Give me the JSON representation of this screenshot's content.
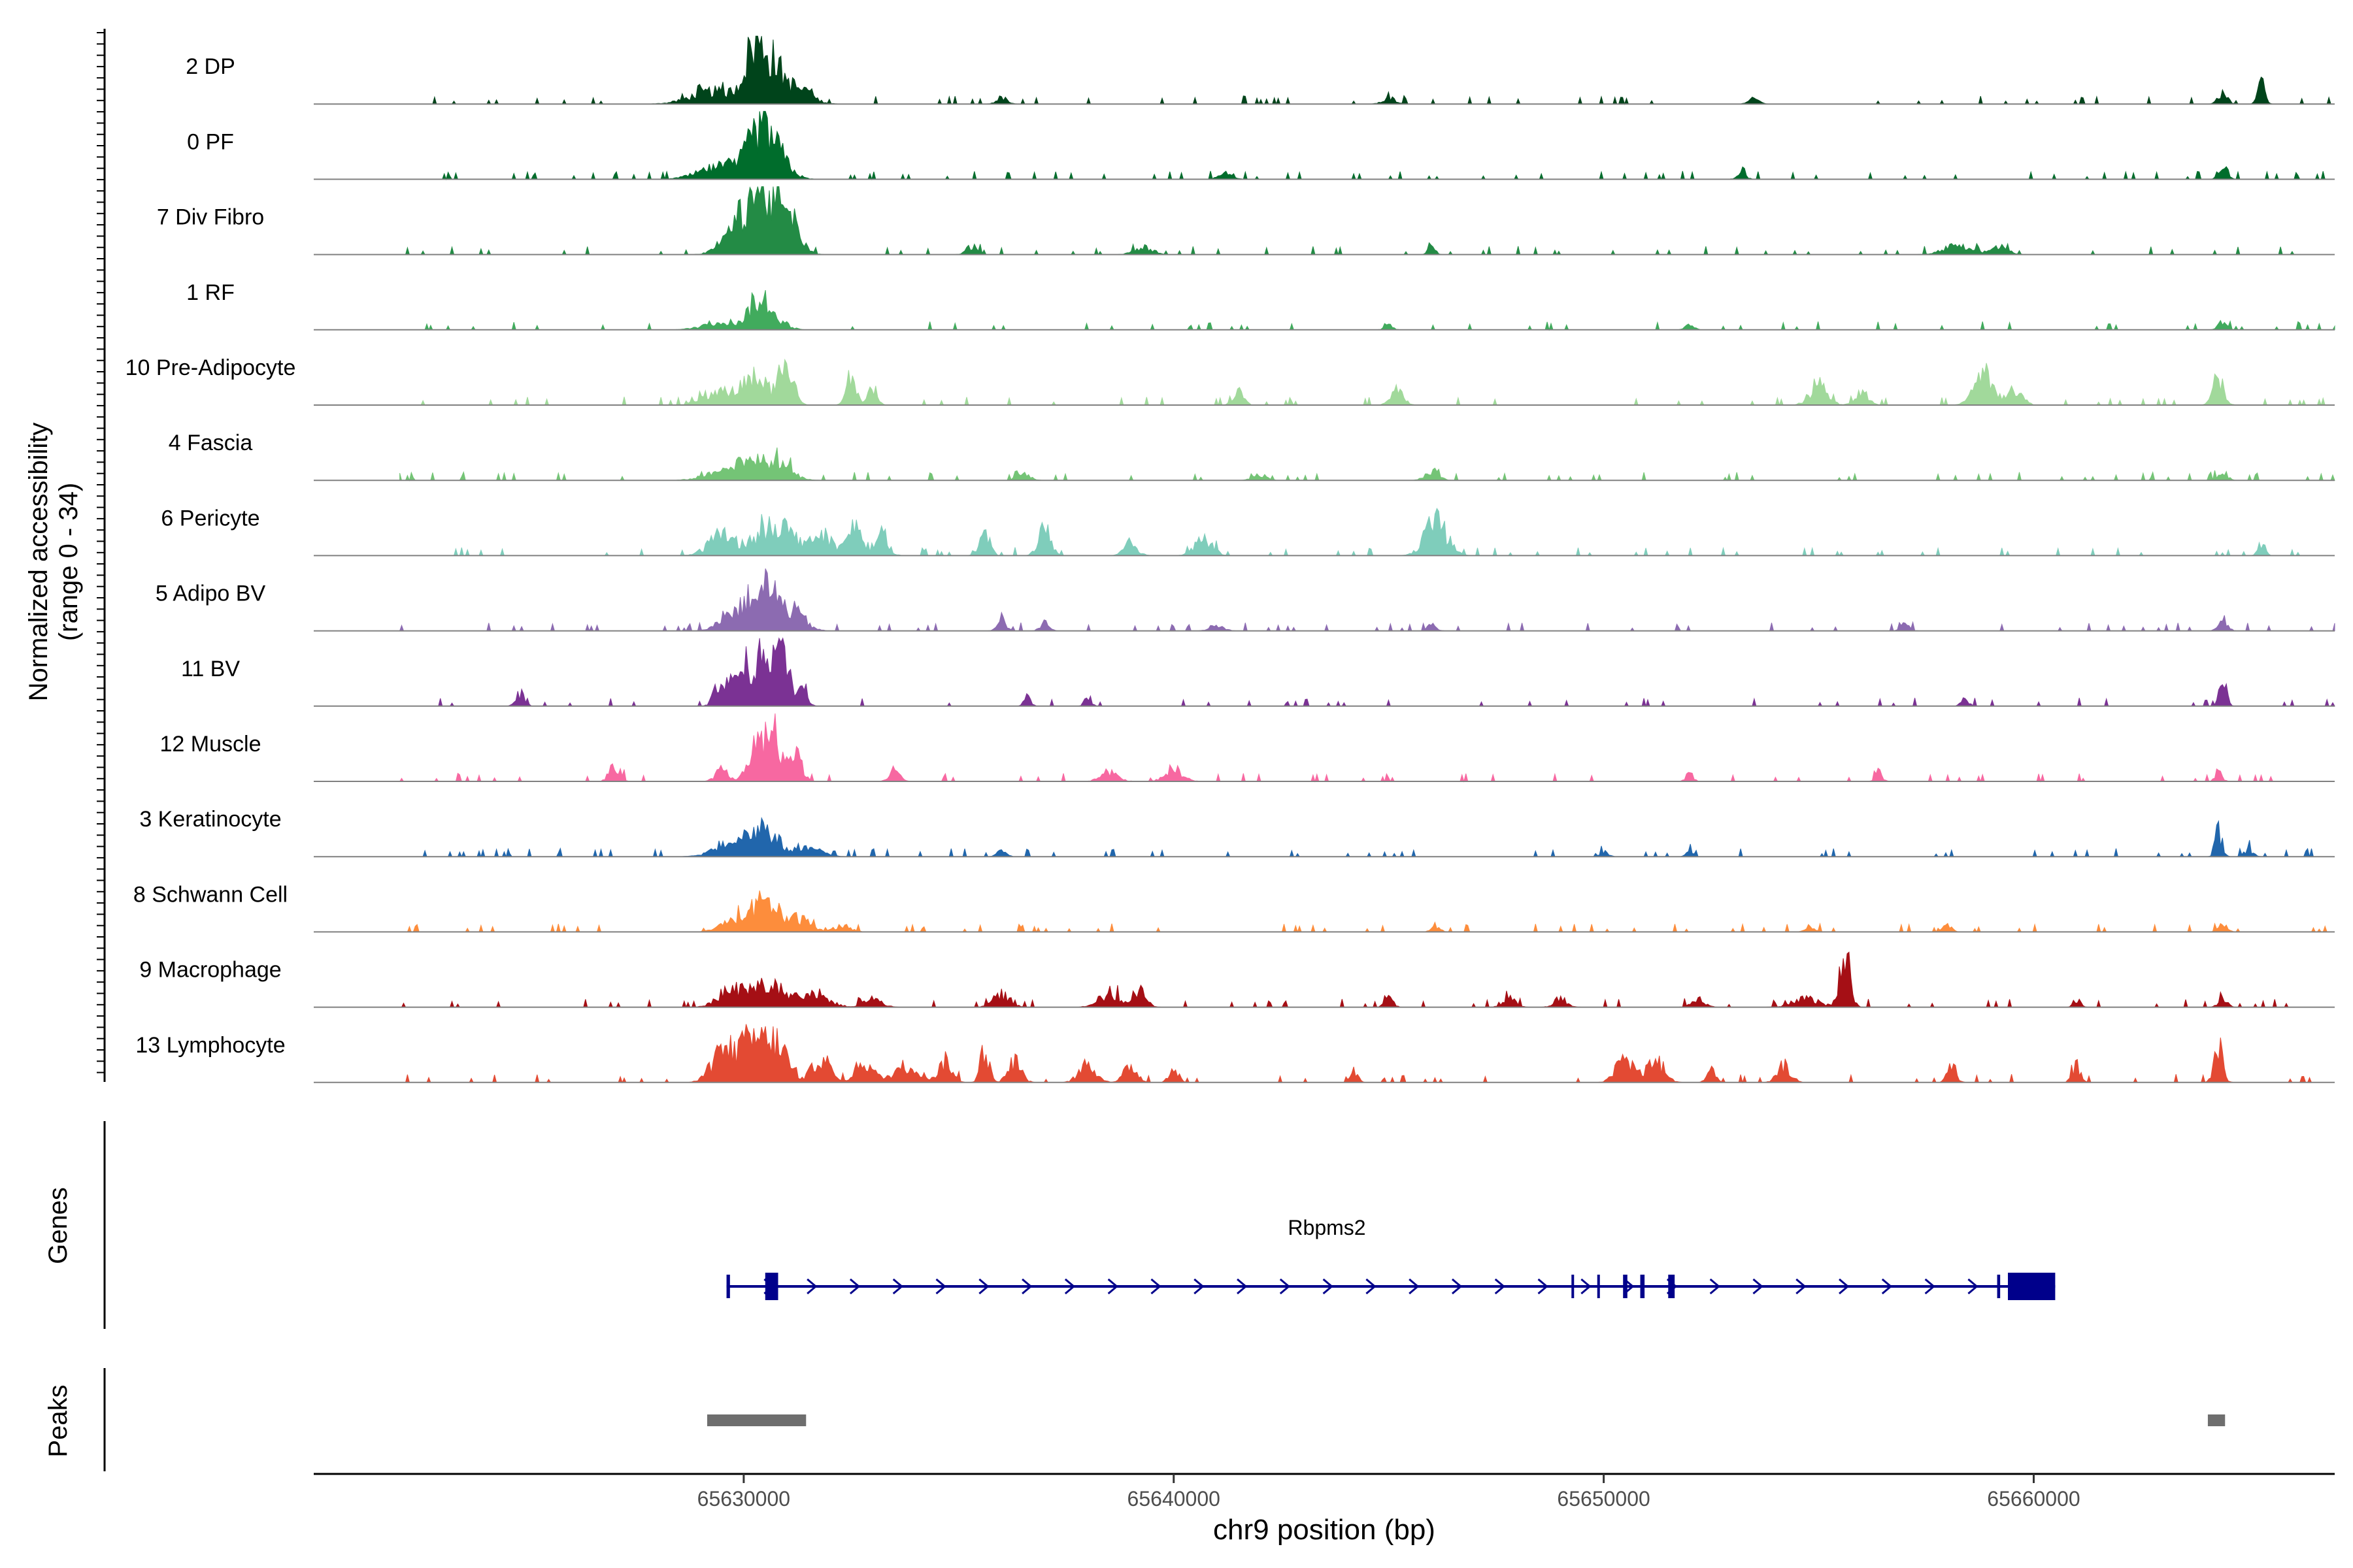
{
  "chart_data": {
    "type": "area",
    "title": "",
    "ylabel_line1": "Normalized accessibility",
    "ylabel_line2": "(range 0 - 34)",
    "ylim": [
      0,
      34
    ],
    "xlabel": "chr9 position (bp)",
    "xlim": [
      65620000,
      65667000
    ],
    "x_ticks": [
      65630000,
      65640000,
      65650000,
      65660000
    ],
    "x_tick_labels": [
      "65630000",
      "65640000",
      "65650000",
      "65660000"
    ],
    "track_start": 65622000,
    "track_end": 65667000,
    "tracks": [
      {
        "name": "2 DP",
        "color": "#00441b",
        "peaks": [
          [
            65630200,
            220,
            9
          ],
          [
            65630600,
            300,
            10
          ],
          [
            65629300,
            500,
            3
          ],
          [
            65631300,
            300,
            3
          ],
          [
            65636000,
            120,
            1.5
          ],
          [
            65645000,
            150,
            1.5
          ],
          [
            65653500,
            120,
            1.2
          ],
          [
            65664400,
            100,
            3
          ],
          [
            65665300,
            80,
            6
          ]
        ]
      },
      {
        "name": "0 PF",
        "color": "#006d2c",
        "peaks": [
          [
            65630300,
            250,
            8
          ],
          [
            65630700,
            300,
            7
          ],
          [
            65629500,
            500,
            3
          ],
          [
            65641200,
            150,
            1.5
          ],
          [
            65653200,
            100,
            1.5
          ],
          [
            65664400,
            100,
            3.5
          ]
        ]
      },
      {
        "name": "7 Div Fibro",
        "color": "#238b45",
        "peaks": [
          [
            65630300,
            250,
            13
          ],
          [
            65630800,
            250,
            10
          ],
          [
            65629800,
            300,
            6
          ],
          [
            65631200,
            200,
            5
          ],
          [
            65635300,
            120,
            2
          ],
          [
            65639300,
            200,
            2
          ],
          [
            65646000,
            80,
            2
          ],
          [
            65658200,
            300,
            2
          ],
          [
            65659200,
            200,
            2
          ]
        ]
      },
      {
        "name": "1 RF",
        "color": "#41ab5d",
        "peaks": [
          [
            65630300,
            200,
            6
          ],
          [
            65630700,
            250,
            3
          ],
          [
            65629500,
            400,
            2
          ],
          [
            65645000,
            100,
            1
          ],
          [
            65652000,
            100,
            1
          ],
          [
            65664400,
            100,
            2
          ]
        ]
      },
      {
        "name": "10 Pre-Adipocyte",
        "color": "#a1d99b",
        "peaks": [
          [
            65631000,
            150,
            12
          ],
          [
            65630300,
            300,
            6
          ],
          [
            65629500,
            400,
            3
          ],
          [
            65632500,
            120,
            5
          ],
          [
            65633000,
            100,
            4
          ],
          [
            65641500,
            120,
            4
          ],
          [
            65645200,
            150,
            3
          ],
          [
            65655000,
            200,
            5
          ],
          [
            65656000,
            150,
            3
          ],
          [
            65658800,
            200,
            8
          ],
          [
            65659500,
            200,
            4
          ],
          [
            65664300,
            120,
            7
          ]
        ]
      },
      {
        "name": "4 Fascia",
        "color": "#74c476",
        "peaks": [
          [
            65630200,
            250,
            5
          ],
          [
            65630800,
            300,
            4
          ],
          [
            65629500,
            400,
            2
          ],
          [
            65636500,
            150,
            1.5
          ],
          [
            65642000,
            150,
            1.5
          ],
          [
            65646000,
            150,
            2.5
          ],
          [
            65664400,
            100,
            2
          ]
        ]
      },
      {
        "name": "6 Pericyte",
        "color": "#7fcdbb",
        "peaks": [
          [
            65630700,
            400,
            8
          ],
          [
            65629500,
            300,
            5
          ],
          [
            65631800,
            300,
            5
          ],
          [
            65632600,
            150,
            7
          ],
          [
            65633200,
            150,
            6
          ],
          [
            65635600,
            120,
            5
          ],
          [
            65637000,
            150,
            6
          ],
          [
            65639000,
            150,
            3
          ],
          [
            65640700,
            200,
            4
          ],
          [
            65646100,
            250,
            8
          ],
          [
            65665300,
            80,
            3
          ]
        ]
      },
      {
        "name": "5 Adipo BV",
        "color": "#8c6bb1",
        "peaks": [
          [
            65630500,
            300,
            11
          ],
          [
            65629800,
            300,
            5
          ],
          [
            65631200,
            250,
            4
          ],
          [
            65636000,
            100,
            3
          ],
          [
            65637000,
            100,
            2
          ],
          [
            65641000,
            150,
            1.5
          ],
          [
            65646000,
            100,
            1.5
          ],
          [
            65657000,
            100,
            2
          ],
          [
            65664400,
            100,
            3
          ]
        ]
      },
      {
        "name": "11 BV",
        "color": "#7b3294",
        "peaks": [
          [
            65630500,
            200,
            12
          ],
          [
            65630900,
            200,
            11
          ],
          [
            65629500,
            150,
            7
          ],
          [
            65630000,
            200,
            8
          ],
          [
            65631400,
            100,
            4
          ],
          [
            65624800,
            100,
            3
          ],
          [
            65636600,
            80,
            2
          ],
          [
            65638000,
            80,
            2
          ],
          [
            65658400,
            80,
            2
          ],
          [
            65664400,
            80,
            6
          ]
        ]
      },
      {
        "name": "12 Muscle",
        "color": "#f768a1",
        "peaks": [
          [
            65630700,
            150,
            13
          ],
          [
            65630300,
            200,
            8
          ],
          [
            65631200,
            150,
            6
          ],
          [
            65627000,
            120,
            4
          ],
          [
            65629500,
            150,
            3
          ],
          [
            65633500,
            120,
            3
          ],
          [
            65638500,
            200,
            2
          ],
          [
            65640000,
            200,
            3
          ],
          [
            65652000,
            80,
            2
          ],
          [
            65656400,
            80,
            2
          ],
          [
            65664300,
            80,
            2
          ]
        ]
      },
      {
        "name": "3 Keratinocyte",
        "color": "#2166ac",
        "peaks": [
          [
            65630500,
            300,
            6
          ],
          [
            65629800,
            400,
            4
          ],
          [
            65631500,
            300,
            2
          ],
          [
            65636000,
            100,
            1.5
          ],
          [
            65650000,
            100,
            1.2
          ],
          [
            65652000,
            80,
            1.5
          ],
          [
            65664300,
            80,
            6
          ],
          [
            65665000,
            100,
            1.5
          ]
        ]
      },
      {
        "name": "8 Schwann Cell",
        "color": "#fd8d3c",
        "peaks": [
          [
            65630500,
            300,
            7
          ],
          [
            65629800,
            300,
            3
          ],
          [
            65631300,
            250,
            3
          ],
          [
            65632300,
            200,
            1.5
          ],
          [
            65646100,
            100,
            1.5
          ],
          [
            65654800,
            100,
            1.5
          ],
          [
            65658000,
            100,
            1.5
          ],
          [
            65664400,
            100,
            2
          ]
        ]
      },
      {
        "name": "9 Macrophage",
        "color": "#a50f15",
        "peaks": [
          [
            65655600,
            120,
            14
          ],
          [
            65629700,
            300,
            4
          ],
          [
            65630600,
            400,
            5
          ],
          [
            65631700,
            300,
            3
          ],
          [
            65633000,
            200,
            2
          ],
          [
            65636000,
            200,
            3
          ],
          [
            65638500,
            250,
            3
          ],
          [
            65639200,
            150,
            4
          ],
          [
            65645000,
            100,
            2
          ],
          [
            65647800,
            150,
            2
          ],
          [
            65649000,
            150,
            2
          ],
          [
            65652200,
            150,
            2
          ],
          [
            65654700,
            300,
            2
          ],
          [
            65661000,
            80,
            2
          ],
          [
            65664400,
            100,
            2
          ]
        ]
      },
      {
        "name": "13 Lymphocyte",
        "color": "#e34a33",
        "peaks": [
          [
            65630200,
            300,
            10
          ],
          [
            65629500,
            250,
            7
          ],
          [
            65630800,
            250,
            8
          ],
          [
            65631800,
            200,
            6
          ],
          [
            65632800,
            200,
            5
          ],
          [
            65633800,
            300,
            4
          ],
          [
            65634700,
            150,
            5
          ],
          [
            65635600,
            100,
            8
          ],
          [
            65636300,
            150,
            5
          ],
          [
            65638000,
            200,
            4
          ],
          [
            65639000,
            150,
            4
          ],
          [
            65640000,
            100,
            4
          ],
          [
            65644200,
            80,
            3
          ],
          [
            65650500,
            200,
            6
          ],
          [
            65651200,
            200,
            5
          ],
          [
            65652500,
            100,
            3
          ],
          [
            65654200,
            150,
            4
          ],
          [
            65658100,
            100,
            4
          ],
          [
            65661000,
            100,
            4
          ],
          [
            65664300,
            100,
            8
          ]
        ]
      }
    ],
    "genes_label": "Genes",
    "gene": {
      "name": "Rbpms2",
      "start": 65629600,
      "end": 65660500,
      "strand": "+",
      "exons": [
        [
          65629600,
          65629680
        ],
        [
          65630500,
          65630800
        ],
        [
          65649250,
          65649300
        ],
        [
          65649850,
          65649900
        ],
        [
          65650450,
          65650550
        ],
        [
          65650850,
          65650950
        ],
        [
          65651500,
          65651650
        ],
        [
          65659150,
          65659220
        ],
        [
          65659400,
          65660500
        ]
      ],
      "color": "#00008b"
    },
    "peaks_label": "Peaks",
    "peak_regions": [
      [
        65629150,
        65631450
      ],
      [
        65664050,
        65664450
      ]
    ],
    "peak_color": "#6e6e6e"
  }
}
